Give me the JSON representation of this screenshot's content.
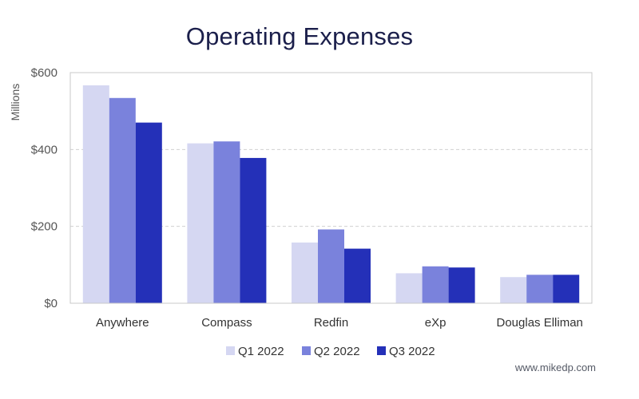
{
  "chart_data": {
    "type": "bar",
    "title": "Operating Expenses",
    "ylabel": "Millions",
    "xlabel": "",
    "ylim": [
      0,
      600
    ],
    "yticks": [
      0,
      200,
      400,
      600
    ],
    "ytick_labels": [
      "$0",
      "$200",
      "$400",
      "$600"
    ],
    "grid": true,
    "legend_position": "bottom",
    "categories": [
      "Anywhere",
      "Compass",
      "Redfin",
      "eXp",
      "Douglas Elliman"
    ],
    "series": [
      {
        "name": "Q1 2022",
        "color": "#d5d7f2",
        "values": [
          567,
          416,
          158,
          78,
          68
        ]
      },
      {
        "name": "Q2 2022",
        "color": "#7a82dc",
        "values": [
          534,
          421,
          192,
          96,
          74
        ]
      },
      {
        "name": "Q3 2022",
        "color": "#2430b8",
        "values": [
          470,
          378,
          142,
          93,
          74
        ]
      }
    ]
  },
  "footer": {
    "watermark": "www.mikedp.com"
  }
}
